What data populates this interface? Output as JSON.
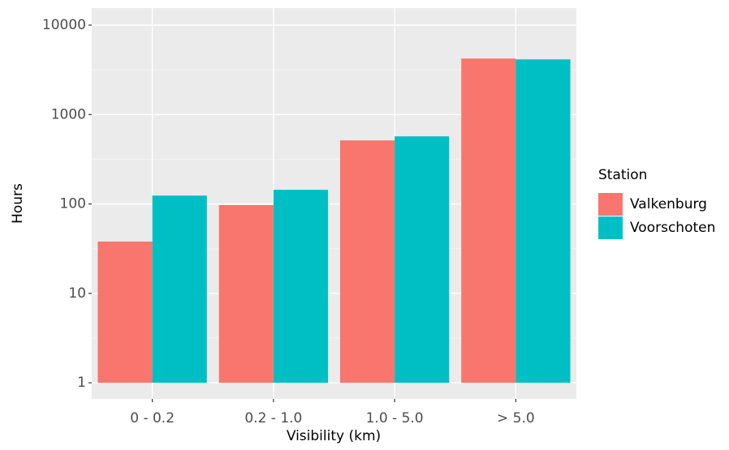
{
  "chart_data": {
    "type": "bar",
    "x_label": "Visibility (km)",
    "y_label": "Hours",
    "categories": [
      "0 - 0.2",
      "0.2 - 1.0",
      "1.0 - 5.0",
      "> 5.0"
    ],
    "series": [
      {
        "name": "Valkenburg",
        "color": "#F8766D",
        "values": [
          38,
          97,
          514,
          4230
        ]
      },
      {
        "name": "Voorschoten",
        "color": "#00BFC4",
        "values": [
          124,
          144,
          570,
          4140
        ]
      }
    ],
    "ylim": [
      0.66,
      15500
    ],
    "yticks": [
      1,
      10,
      100,
      1000,
      10000
    ],
    "log_y": true,
    "grid": true,
    "legend_title": "Station",
    "legend_position": "right"
  }
}
